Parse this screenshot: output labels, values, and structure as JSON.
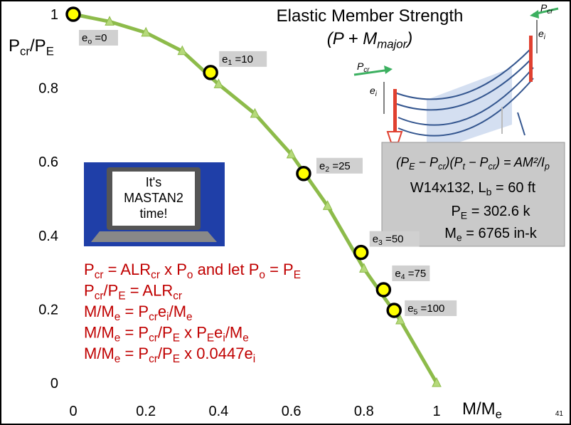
{
  "chart_data": {
    "type": "line",
    "title": "Elastic Member Strength",
    "subtitle": [
      "(P + M",
      "major",
      ")"
    ],
    "x_label": [
      "M/M",
      "e"
    ],
    "y_label": [
      "P",
      "cr",
      "/P",
      "E"
    ],
    "xlim": [
      0,
      1
    ],
    "ylim": [
      0,
      1
    ],
    "xticks": [
      0,
      0.2,
      0.4,
      0.6,
      0.8,
      1
    ],
    "yticks": [
      0,
      0.2,
      0.4,
      0.6,
      0.8,
      1
    ],
    "series": [
      {
        "color": "#8dbb4a",
        "marker": "triangle",
        "marker_color": "#b5d97a",
        "x": [
          0,
          0.1,
          0.2,
          0.3,
          0.4,
          0.5,
          0.6,
          0.7,
          0.8,
          0.9,
          1
        ],
        "values": [
          1,
          0.98,
          0.95,
          0.9,
          0.81,
          0.73,
          0.62,
          0.48,
          0.31,
          0.17,
          0
        ]
      },
      {
        "color": "#ffff00",
        "marker": "circle",
        "x": [
          0,
          0.378,
          0.634,
          0.792,
          0.854,
          0.883
        ],
        "values": [
          1,
          0.842,
          0.568,
          0.354,
          0.253,
          0.197
        ]
      }
    ],
    "annotations": [
      [
        "e",
        "o",
        " =0"
      ],
      [
        "e",
        "1",
        " =10"
      ],
      [
        "e",
        "2",
        " =25"
      ],
      [
        "e",
        "3",
        " =50"
      ],
      [
        "e",
        "4",
        " =75"
      ],
      [
        "e",
        "5",
        " =100"
      ]
    ]
  },
  "formulas": [
    [
      "P",
      "cr",
      " = ALR",
      "cr",
      " x P",
      "o",
      " and let P",
      "o",
      " = P",
      "E"
    ],
    [
      "P",
      "cr",
      "/P",
      "E",
      " = ALR",
      "cr"
    ],
    [
      "M/M",
      "e",
      " = P",
      "cr",
      "e",
      "i",
      "/M",
      "e"
    ],
    [
      "M/M",
      "e",
      " = P",
      "cr",
      "/P",
      "E",
      " x P",
      "E",
      "e",
      "i",
      "/M",
      "e"
    ],
    [
      "M/M",
      "e",
      " = P",
      "cr",
      "/P",
      "E",
      " x 0.0447e",
      "i"
    ]
  ],
  "info_box": [
    [
      "(P",
      "E",
      " − P",
      "cr",
      ")(P",
      "t",
      " − P",
      "cr",
      ") = AM²/I",
      "p"
    ],
    [
      "W14x132, L",
      "b",
      " = 60 ft"
    ],
    [
      "P",
      "E",
      " = 302.6 k"
    ],
    [
      "M",
      "e",
      " = 6765 in-k"
    ]
  ],
  "laptop_text": [
    "It's",
    "MASTAN2",
    "time!"
  ],
  "diagram_labels": [
    [
      "P",
      "cr"
    ],
    [
      "e",
      "i"
    ],
    [
      "P",
      "cr"
    ],
    [
      "e",
      "i"
    ]
  ],
  "page_number": "41"
}
